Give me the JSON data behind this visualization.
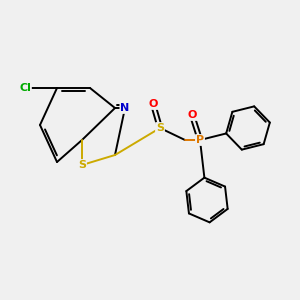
{
  "background_color": "#f0f0f0",
  "atom_colors": {
    "C": "#000000",
    "N": "#0000cc",
    "S": "#ccaa00",
    "O": "#ff0000",
    "P": "#dd7700",
    "Cl": "#00aa00"
  },
  "line_color": "#000000",
  "bond_lw": 1.4,
  "figsize": [
    3.0,
    3.0
  ],
  "dpi": 100
}
